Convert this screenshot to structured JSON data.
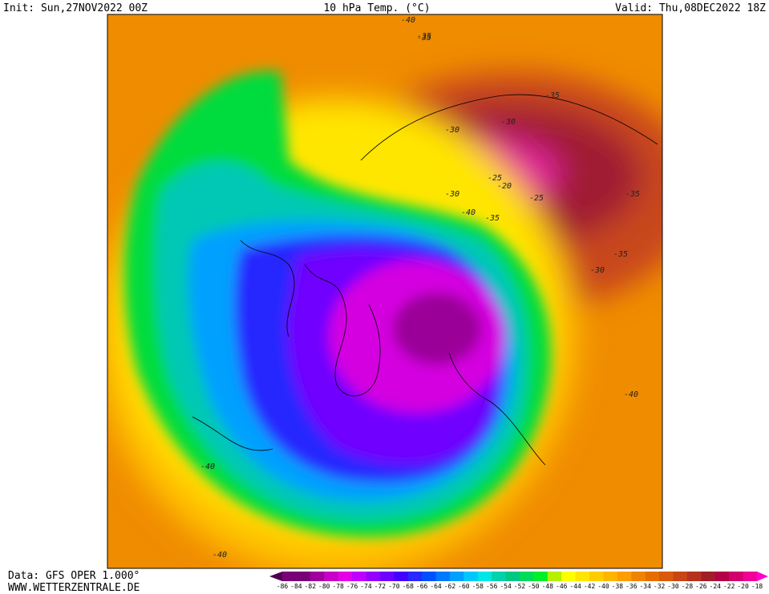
{
  "header": {
    "init": "Init: Sun,27NOV2022 00Z",
    "title": "10 hPa Temp. (°C)",
    "valid": "Valid: Thu,08DEC2022 18Z"
  },
  "footer": {
    "data": "Data: GFS OPER 1.000°",
    "site": "WWW.WETTERZENTRALE.DE"
  },
  "legend": {
    "ticks": [
      -86,
      -84,
      -82,
      -80,
      -78,
      -76,
      -74,
      -72,
      -70,
      -68,
      -66,
      -64,
      -62,
      -60,
      -58,
      -56,
      -54,
      -52,
      -50,
      -48,
      -46,
      -44,
      -42,
      -40,
      -38,
      -36,
      -34,
      -32,
      -30,
      -28,
      -26,
      -24,
      -22,
      -20,
      -18
    ],
    "colors": [
      "#500050",
      "#7a0078",
      "#a000a0",
      "#c800c8",
      "#e600e6",
      "#c000ff",
      "#9600ff",
      "#6e00ff",
      "#4600ff",
      "#2828ff",
      "#0050ff",
      "#0078ff",
      "#00a0ff",
      "#00c8ff",
      "#00e6e6",
      "#00d2aa",
      "#00c882",
      "#00dc5a",
      "#00f028",
      "#b4f000",
      "#ffff00",
      "#ffe600",
      "#ffcc00",
      "#ffb400",
      "#ff9c00",
      "#f08400",
      "#e66e00",
      "#d85a0a",
      "#c84614",
      "#b4321e",
      "#a01e28",
      "#b40046",
      "#d2006e",
      "#f00096",
      "#ff00d2"
    ]
  },
  "map": {
    "contour_labels": [
      "-40",
      "-35",
      "-35",
      "-30",
      "-35",
      "-30",
      "-20",
      "-25",
      "-30",
      "-25",
      "-35",
      "-40",
      "-35",
      "-35",
      "-30",
      "-40",
      "-40",
      "-40"
    ]
  }
}
